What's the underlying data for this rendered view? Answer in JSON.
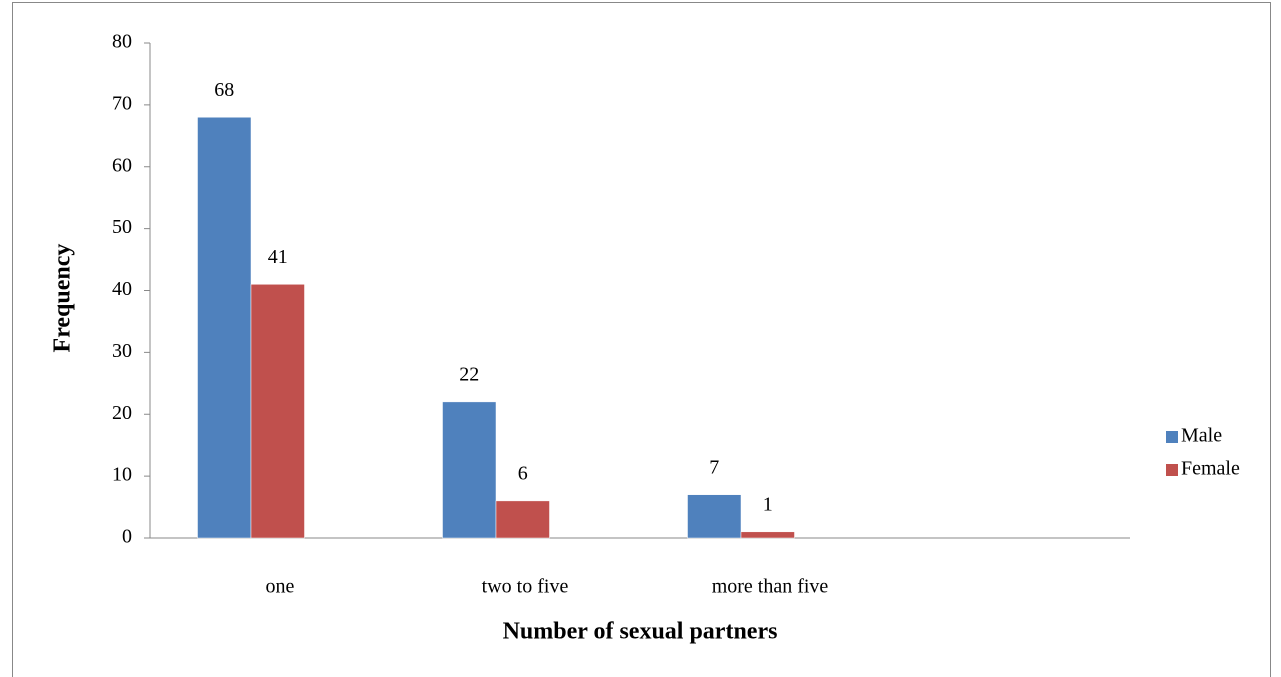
{
  "chart_data": {
    "type": "bar",
    "categories": [
      "one",
      "two to five",
      "more than five",
      null
    ],
    "series": [
      {
        "name": "Male",
        "color": "#4f81bd",
        "values": [
          68,
          22,
          7,
          null
        ]
      },
      {
        "name": "Female",
        "color": "#c0504d",
        "values": [
          41,
          6,
          1,
          null
        ]
      }
    ],
    "xlabel": "Number of sexual partners",
    "ylabel": "Frequency",
    "ylim": [
      0,
      80
    ],
    "yticks": [
      0,
      10,
      20,
      30,
      40,
      50,
      60,
      70,
      80
    ],
    "legend": "right"
  }
}
